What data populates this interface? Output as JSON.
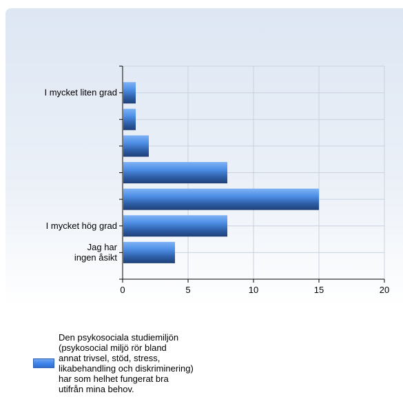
{
  "chart_data": {
    "type": "bar",
    "orientation": "horizontal",
    "categories": [
      "I mycket liten grad",
      "",
      "",
      "",
      "",
      "I mycket hög grad",
      "Jag har ingen åsikt"
    ],
    "series": [
      {
        "name": "Den psykosociala studiemiljön (psykosocial miljö rör bland annat trivsel, stöd, stress, likabehandling och diskriminering) har som helhet fungerat bra utifrån mina behov.",
        "values": [
          1,
          1,
          2,
          8,
          15,
          8,
          4
        ],
        "color": "#3f85ea"
      }
    ],
    "xlim": [
      0,
      20
    ],
    "x_ticks": [
      "0",
      "5",
      "10",
      "15",
      "20"
    ],
    "grid": true,
    "legend_position": "bottom-left"
  },
  "legend": {
    "label": "Den psykosociala studiemiljön\n(psykosocial miljö rör bland\nannat trivsel, stöd, stress,\nlikabehandling och diskriminering)\nhar som helhet fungerat bra\nutifrån mina behov."
  }
}
